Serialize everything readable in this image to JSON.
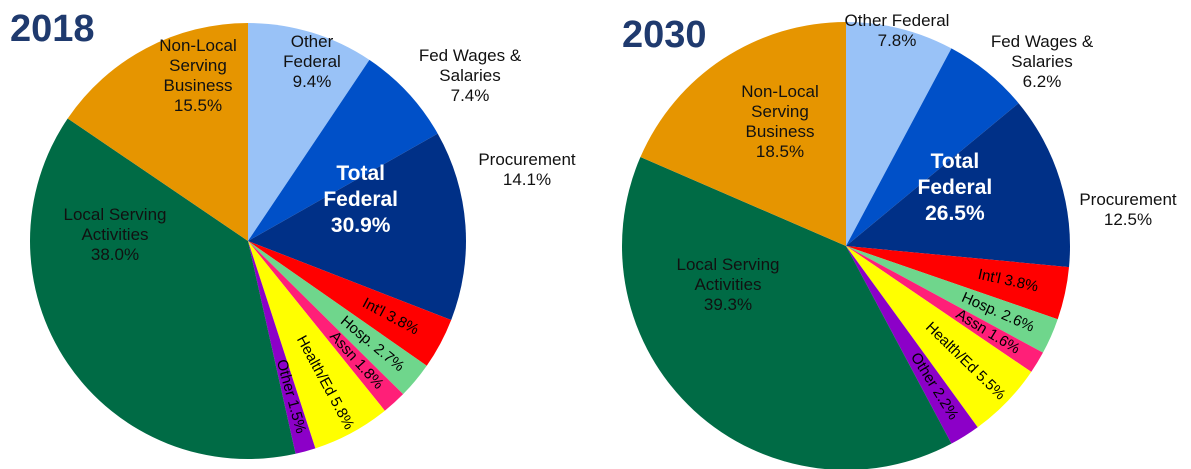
{
  "chart_data": [
    {
      "type": "pie",
      "title": "2018",
      "categories": [
        "Other Federal",
        "Fed Wages & Salaries",
        "Procurement",
        "Int'l",
        "Hosp.",
        "Assn",
        "Health/Ed",
        "Other",
        "Local Serving Activities",
        "Non-Local Serving Business"
      ],
      "values": [
        9.4,
        7.4,
        14.1,
        3.8,
        2.7,
        1.8,
        5.8,
        1.5,
        38.0,
        15.5
      ],
      "value_labels": [
        "9.4%",
        "7.4%",
        "14.1%",
        "3.8%",
        "2.7%",
        "1.8%",
        "5.8%",
        "1.5%",
        "38.0%",
        "15.5%"
      ],
      "colors": [
        "#99c2f7",
        "#0050c8",
        "#003087",
        "#ff0000",
        "#6fd68c",
        "#ff1f78",
        "#ffff00",
        "#8c00c8",
        "#006b45",
        "#e69500"
      ],
      "total": {
        "label": "Total Federal",
        "value": 30.9,
        "value_label": "30.9%"
      }
    },
    {
      "type": "pie",
      "title": "2030",
      "categories": [
        "Other Federal",
        "Fed Wages & Salaries",
        "Procurement",
        "Int'l",
        "Hosp.",
        "Assn",
        "Health/Ed",
        "Other",
        "Local Serving Activities",
        "Non-Local Serving Business"
      ],
      "values": [
        7.8,
        6.2,
        12.5,
        3.8,
        2.6,
        1.6,
        5.5,
        2.2,
        39.3,
        18.5
      ],
      "value_labels": [
        "7.8%",
        "6.2%",
        "12.5%",
        "3.8%",
        "2.6%",
        "1.6%",
        "5.5%",
        "2.2%",
        "39.3%",
        "18.5%"
      ],
      "colors": [
        "#99c2f7",
        "#0050c8",
        "#003087",
        "#ff0000",
        "#6fd68c",
        "#ff1f78",
        "#ffff00",
        "#8c00c8",
        "#006b45",
        "#e69500"
      ],
      "total": {
        "label": "Total Federal",
        "value": 26.5,
        "value_label": "26.5%"
      }
    }
  ]
}
